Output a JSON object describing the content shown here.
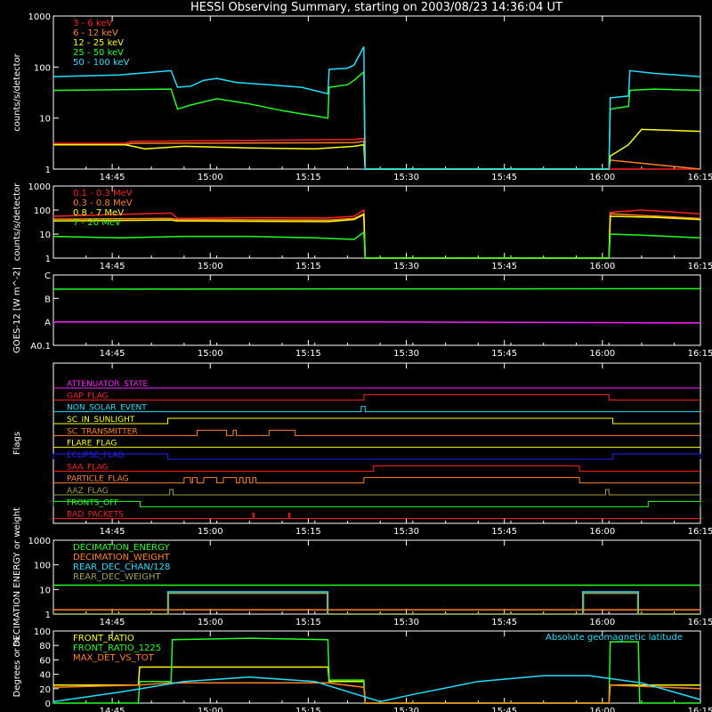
{
  "title": "HESSI Observing Summary, starting on 2003/08/23 14:36:04 UT",
  "colors": {
    "bg": "#000000",
    "axes": "#ffffff",
    "red": "#ff2020",
    "orange": "#ff8020",
    "yellow": "#ffff00",
    "green": "#20ff20",
    "cyan": "#20e0ff",
    "magenta": "#ff20ff",
    "blue": "#2020ff",
    "olive": "#a0a040",
    "darkred": "#ff2020",
    "green2": "#20ff20"
  },
  "time_axis": {
    "start_min": 0,
    "end_min": 99,
    "tick_labels": [
      "14:45",
      "15:00",
      "15:15",
      "15:30",
      "15:45",
      "16:00",
      "16:15"
    ]
  },
  "chart_data": [
    {
      "id": "counts",
      "type": "line",
      "ylabel": "counts/s/detector",
      "yscale": "log",
      "ylim": [
        1,
        1000
      ],
      "y_tick_labels": [
        "1",
        "10",
        "100",
        "1000"
      ],
      "series": [
        {
          "name": "3 - 6 keV",
          "color": "red",
          "points": [
            [
              0,
              3.2
            ],
            [
              11,
              3.2
            ],
            [
              12,
              3.5
            ],
            [
              46,
              3.8
            ],
            [
              47.5,
              4
            ],
            [
              47.7,
              1
            ],
            [
              85,
              1
            ],
            [
              85.2,
              1
            ],
            [
              99,
              1
            ]
          ]
        },
        {
          "name": "6 - 12 keV",
          "color": "orange",
          "points": [
            [
              0,
              3
            ],
            [
              11,
              3
            ],
            [
              12,
              3.2
            ],
            [
              46,
              3.3
            ],
            [
              47.5,
              3.5
            ],
            [
              47.7,
              1
            ],
            [
              85,
              1
            ],
            [
              85.2,
              1.5
            ],
            [
              99,
              1
            ]
          ]
        },
        {
          "name": "12 - 25 keV",
          "color": "yellow",
          "points": [
            [
              0,
              3
            ],
            [
              11,
              3
            ],
            [
              14,
              2.5
            ],
            [
              20,
              2.8
            ],
            [
              30,
              2.6
            ],
            [
              40,
              2.5
            ],
            [
              46,
              2.8
            ],
            [
              47.5,
              3
            ],
            [
              47.7,
              1
            ],
            [
              85,
              1
            ],
            [
              85.2,
              1.8
            ],
            [
              88,
              3
            ],
            [
              90,
              6
            ],
            [
              99,
              5.5
            ]
          ]
        },
        {
          "name": "25 - 50 keV",
          "color": "green",
          "points": [
            [
              0,
              35
            ],
            [
              10,
              36
            ],
            [
              18,
              37
            ],
            [
              19,
              15
            ],
            [
              21,
              18
            ],
            [
              25,
              24
            ],
            [
              30,
              19
            ],
            [
              35,
              14
            ],
            [
              40,
              11
            ],
            [
              42,
              10
            ],
            [
              42.2,
              40
            ],
            [
              45,
              45
            ],
            [
              46,
              55
            ],
            [
              47.5,
              80
            ],
            [
              47.7,
              1
            ],
            [
              85,
              1
            ],
            [
              85.2,
              15
            ],
            [
              88,
              17
            ],
            [
              88.2,
              35
            ],
            [
              92,
              37
            ],
            [
              99,
              35
            ]
          ]
        },
        {
          "name": "50 - 100 keV",
          "color": "cyan",
          "points": [
            [
              0,
              65
            ],
            [
              10,
              70
            ],
            [
              18,
              85
            ],
            [
              19,
              40
            ],
            [
              21,
              42
            ],
            [
              23,
              55
            ],
            [
              25,
              60
            ],
            [
              28,
              50
            ],
            [
              33,
              45
            ],
            [
              38,
              40
            ],
            [
              42,
              30
            ],
            [
              42.2,
              90
            ],
            [
              45,
              95
            ],
            [
              46,
              110
            ],
            [
              47.5,
              250
            ],
            [
              47.7,
              1
            ],
            [
              85,
              1
            ],
            [
              85.2,
              25
            ],
            [
              88,
              27
            ],
            [
              88.2,
              85
            ],
            [
              92,
              75
            ],
            [
              99,
              65
            ]
          ]
        }
      ]
    },
    {
      "id": "high_energy",
      "type": "line",
      "ylabel": "counts/s/detector",
      "yscale": "log",
      "ylim": [
        1,
        1000
      ],
      "y_tick_labels": [
        "1",
        "10",
        "100",
        "1000"
      ],
      "series": [
        {
          "name": "0.1 - 0.3 MeV",
          "color": "red",
          "points": [
            [
              0,
              55
            ],
            [
              18,
              75
            ],
            [
              19,
              45
            ],
            [
              30,
              48
            ],
            [
              42,
              47
            ],
            [
              46,
              55
            ],
            [
              47.5,
              100
            ],
            [
              47.7,
              1
            ],
            [
              85,
              1
            ],
            [
              85.2,
              80
            ],
            [
              90,
              100
            ],
            [
              99,
              70
            ]
          ]
        },
        {
          "name": "0.3 - 0.8 MeV",
          "color": "orange",
          "points": [
            [
              0,
              42
            ],
            [
              18,
              45
            ],
            [
              19,
              40
            ],
            [
              42,
              38
            ],
            [
              46,
              45
            ],
            [
              47.5,
              70
            ],
            [
              47.7,
              1
            ],
            [
              85,
              1
            ],
            [
              85.2,
              70
            ],
            [
              90,
              60
            ],
            [
              99,
              45
            ]
          ]
        },
        {
          "name": "0.8 - 7 MeV",
          "color": "yellow",
          "points": [
            [
              0,
              35
            ],
            [
              18,
              38
            ],
            [
              19,
              35
            ],
            [
              42,
              33
            ],
            [
              46,
              40
            ],
            [
              47.5,
              65
            ],
            [
              47.7,
              1
            ],
            [
              85,
              1
            ],
            [
              85.2,
              55
            ],
            [
              92,
              50
            ],
            [
              99,
              40
            ]
          ]
        },
        {
          "name": "7 - 20 MeV",
          "color": "green",
          "points": [
            [
              0,
              8
            ],
            [
              10,
              7
            ],
            [
              20,
              8
            ],
            [
              30,
              8
            ],
            [
              40,
              7
            ],
            [
              46,
              6
            ],
            [
              47.5,
              12
            ],
            [
              47.7,
              1
            ],
            [
              85,
              1
            ],
            [
              85.2,
              10
            ],
            [
              90,
              9
            ],
            [
              99,
              7
            ]
          ]
        }
      ]
    },
    {
      "id": "goes",
      "type": "line",
      "ylabel": "GOES-12 [W m^-2]",
      "yscale": "log",
      "ylim": [
        1e-09,
        1e-06
      ],
      "y_tick_labels": [
        "A0.1",
        "A",
        "B",
        "C"
      ],
      "series": [
        {
          "name": "",
          "color": "green",
          "points": [
            [
              0,
              2.5e-07
            ],
            [
              99,
              2.6e-07
            ]
          ]
        },
        {
          "name": "",
          "color": "magenta",
          "points": [
            [
              0,
              1e-08
            ],
            [
              50,
              1e-08
            ],
            [
              99,
              9e-09
            ]
          ]
        }
      ]
    },
    {
      "id": "flags",
      "type": "line",
      "ylabel": "Flags",
      "flags": [
        {
          "name": "ATTENUATOR_STATE",
          "color": "magenta",
          "on": []
        },
        {
          "name": "GAP_FLAG",
          "color": "red",
          "on": [
            [
              47.5,
              85
            ]
          ]
        },
        {
          "name": "NON_SOLAR_EVENT",
          "color": "cyan",
          "on": [
            [
              47.1,
              47.7
            ]
          ]
        },
        {
          "name": "SC_IN_SUNLIGHT",
          "color": "yellow",
          "on": [
            [
              17.5,
              85.6
            ]
          ]
        },
        {
          "name": "SC_TRANSMITTER",
          "color": "orange",
          "on": [
            [
              22,
              26.5
            ],
            [
              27.5,
              28
            ],
            [
              33,
              37
            ]
          ]
        },
        {
          "name": "FLARE_FLAG",
          "color": "yellow",
          "on": []
        },
        {
          "name": "ECLIPSE_FLAG",
          "color": "blue",
          "on": [
            [
              0,
              17.5
            ],
            [
              85.6,
              99
            ]
          ]
        },
        {
          "name": "SAA_FLAG",
          "color": "red",
          "on": [
            [
              49,
              80.5
            ]
          ]
        },
        {
          "name": "PARTICLE_FLAG",
          "color": "orange",
          "on": [
            [
              20,
              21
            ],
            [
              21.3,
              22
            ],
            [
              23,
              25
            ],
            [
              26,
              28
            ],
            [
              28.5,
              29
            ],
            [
              29.5,
              30
            ],
            [
              30.5,
              31
            ],
            [
              47.5,
              80.5
            ]
          ]
        },
        {
          "name": "AAZ_FLAG",
          "color": "olive",
          "on": [
            [
              17.8,
              18.3
            ],
            [
              84.5,
              85
            ]
          ]
        },
        {
          "name": "FRONTS_OFF",
          "color": "green2",
          "on": [
            [
              0,
              13.3
            ],
            [
              91,
              99
            ]
          ]
        },
        {
          "name": "BAD_PACKETS",
          "color": "darkred",
          "on": [
            [
              30.5,
              30.7
            ],
            [
              36,
              36.2
            ]
          ]
        }
      ]
    },
    {
      "id": "decimation",
      "type": "line",
      "ylabel": "DECIMATION ENERGY or weight",
      "yscale": "log",
      "ylim": [
        1,
        1000
      ],
      "y_tick_labels": [
        "1",
        "10",
        "100",
        "1000"
      ],
      "series": [
        {
          "name": "DECIMATION_ENERGY",
          "color": "green",
          "points": [
            [
              0,
              15
            ],
            [
              99,
              15
            ]
          ]
        },
        {
          "name": "DECIMATION_WEIGHT",
          "color": "orange",
          "points": [
            [
              0,
              1.5
            ],
            [
              99,
              1.5
            ]
          ]
        },
        {
          "name": "REAR_DEC_CHAN/128",
          "color": "cyan",
          "points": [
            [
              0,
              1
            ],
            [
              17.5,
              1
            ],
            [
              17.5,
              8
            ],
            [
              42,
              8
            ],
            [
              42,
              1
            ],
            [
              81,
              1
            ],
            [
              81,
              8
            ],
            [
              89.5,
              8
            ],
            [
              89.5,
              1
            ],
            [
              99,
              1
            ]
          ]
        },
        {
          "name": "REAR_DEC_WEIGHT",
          "color": "olive",
          "points": [
            [
              0,
              1
            ],
            [
              17.6,
              1
            ],
            [
              17.6,
              7
            ],
            [
              41.9,
              7
            ],
            [
              41.9,
              1
            ],
            [
              81.1,
              1
            ],
            [
              81.1,
              7
            ],
            [
              89.4,
              7
            ],
            [
              89.4,
              1
            ],
            [
              99,
              1
            ]
          ]
        }
      ]
    },
    {
      "id": "ratios",
      "type": "line",
      "ylabel": "Degrees or %",
      "ylim": [
        0,
        100
      ],
      "y_tick_labels": [
        "0",
        "20",
        "40",
        "60",
        "80",
        "100"
      ],
      "annotation": "Absolute geomagnetic latitude",
      "series": [
        {
          "name": "FRONT_RATIO",
          "color": "yellow",
          "points": [
            [
              0,
              25
            ],
            [
              13,
              25
            ],
            [
              13.2,
              50
            ],
            [
              42,
              50
            ],
            [
              42.2,
              30
            ],
            [
              47.5,
              30
            ],
            [
              47.7,
              0
            ],
            [
              85,
              0
            ],
            [
              85.2,
              25
            ],
            [
              99,
              25
            ]
          ]
        },
        {
          "name": "FRONT_RATIO_1225",
          "color": "green",
          "points": [
            [
              0,
              0
            ],
            [
              13,
              0
            ],
            [
              13.2,
              30
            ],
            [
              18,
              30
            ],
            [
              18.2,
              88
            ],
            [
              30,
              90
            ],
            [
              42,
              88
            ],
            [
              42.2,
              32
            ],
            [
              47.5,
              32
            ],
            [
              47.7,
              0
            ],
            [
              85,
              0
            ],
            [
              85.2,
              85
            ],
            [
              89.5,
              85
            ],
            [
              89.7,
              0
            ],
            [
              99,
              0
            ]
          ]
        },
        {
          "name": "MAX_DET_VS_TOT",
          "color": "orange",
          "points": [
            [
              0,
              22
            ],
            [
              13,
              25
            ],
            [
              18,
              28
            ],
            [
              42,
              28
            ],
            [
              47.5,
              22
            ],
            [
              47.7,
              0
            ],
            [
              85,
              0
            ],
            [
              85.2,
              25
            ],
            [
              99,
              20
            ]
          ]
        },
        {
          "name": "Absolute geomagnetic latitude",
          "color": "cyan",
          "points": [
            [
              0,
              2
            ],
            [
              10,
              15
            ],
            [
              20,
              30
            ],
            [
              30,
              36
            ],
            [
              40,
              30
            ],
            [
              50,
              2
            ],
            [
              55,
              12
            ],
            [
              65,
              30
            ],
            [
              75,
              38
            ],
            [
              82,
              38
            ],
            [
              90,
              28
            ],
            [
              99,
              5
            ]
          ]
        }
      ]
    }
  ]
}
